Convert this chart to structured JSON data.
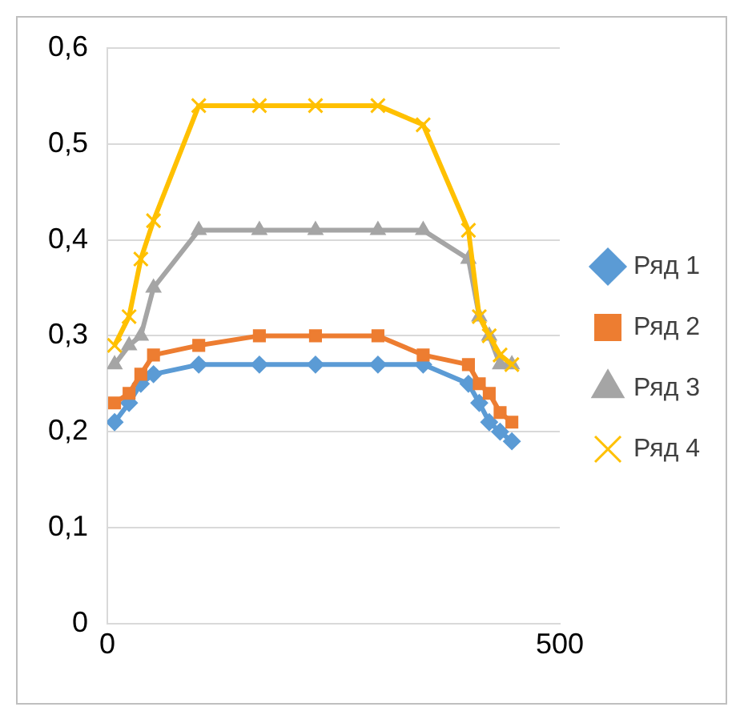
{
  "chart_data": {
    "type": "line",
    "x": [
      8,
      24,
      37,
      51,
      101,
      168,
      230,
      299,
      349,
      399,
      411,
      422,
      434,
      447
    ],
    "series": [
      {
        "name": "Ряд 1",
        "color": "#5b9bd5",
        "marker": "diamond",
        "values": [
          0.21,
          0.23,
          0.25,
          0.26,
          0.27,
          0.27,
          0.27,
          0.27,
          0.27,
          0.25,
          0.23,
          0.21,
          0.2,
          0.19
        ]
      },
      {
        "name": "Ряд 2",
        "color": "#ed7d31",
        "marker": "square",
        "values": [
          0.23,
          0.24,
          0.26,
          0.28,
          0.29,
          0.3,
          0.3,
          0.3,
          0.28,
          0.27,
          0.25,
          0.24,
          0.22,
          0.21
        ]
      },
      {
        "name": "Ряд 3",
        "color": "#a5a5a5",
        "marker": "triangle",
        "values": [
          0.27,
          0.29,
          0.3,
          0.35,
          0.41,
          0.41,
          0.41,
          0.41,
          0.41,
          0.38,
          0.32,
          0.3,
          0.27,
          0.27
        ]
      },
      {
        "name": "Ряд 4",
        "color": "#ffc000",
        "marker": "cross",
        "values": [
          0.29,
          0.32,
          0.38,
          0.42,
          0.54,
          0.54,
          0.54,
          0.54,
          0.52,
          0.41,
          0.32,
          0.3,
          0.28,
          0.27
        ]
      }
    ],
    "xlim": [
      0,
      500
    ],
    "xticks": [
      0,
      500
    ],
    "ylim": [
      0,
      0.6
    ],
    "yticks": [
      {
        "value": 0,
        "label": "0"
      },
      {
        "value": 0.1,
        "label": "0,1"
      },
      {
        "value": 0.2,
        "label": "0,2"
      },
      {
        "value": 0.3,
        "label": "0,3"
      },
      {
        "value": 0.4,
        "label": "0,4"
      },
      {
        "value": 0.5,
        "label": "0,5"
      },
      {
        "value": 0.6,
        "label": "0,6"
      }
    ],
    "grid": "y",
    "legend": "right",
    "line_style": "solid"
  }
}
